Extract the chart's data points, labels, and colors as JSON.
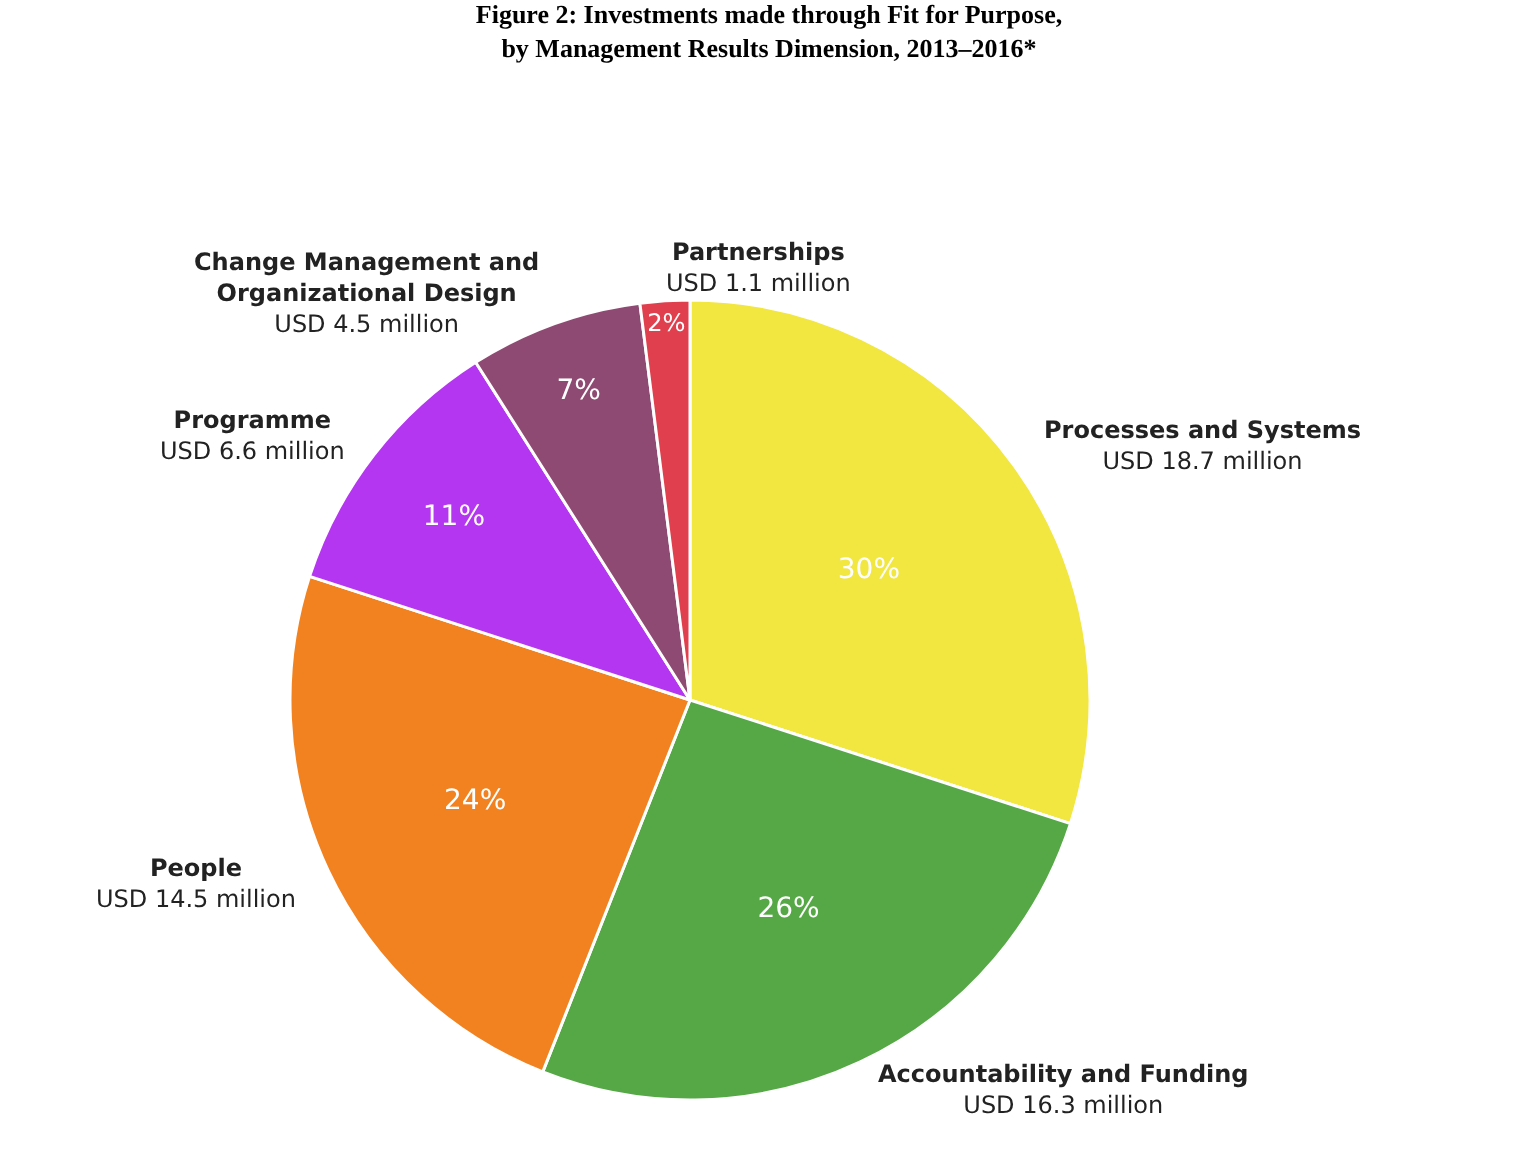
{
  "chart_data": {
    "type": "pie",
    "title": "Figure 2: Investments made through Fit for Purpose,\nby Management Results Dimension, 2013–2016*",
    "categories": [
      "Processes and Systems",
      "Accountability and Funding",
      "People",
      "Programme",
      "Change Management and\nOrganizational Design",
      "Partnerships"
    ],
    "values": [
      30,
      26,
      24,
      11,
      7,
      2
    ],
    "colors": [
      "#f2e640",
      "#56a846",
      "#f28220",
      "#b536f0",
      "#8e4a72",
      "#e0404e"
    ],
    "value_labels": [
      "30%",
      "26%",
      "24%",
      "11%",
      "7%",
      "2%"
    ],
    "annotations": [
      "USD 18.7 million",
      "USD 16.3 million",
      "USD 14.5 million",
      "USD 6.6 million",
      "USD 4.5 million",
      "USD 1.1 million"
    ],
    "legend": false
  }
}
